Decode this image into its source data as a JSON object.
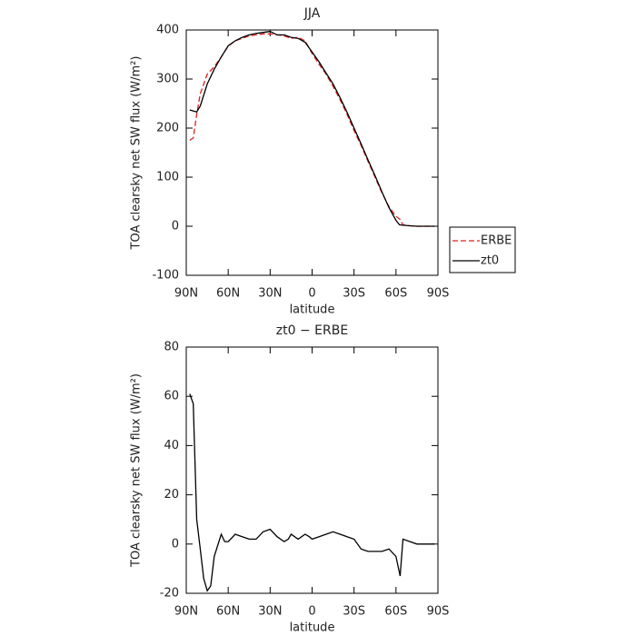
{
  "chart_data": [
    {
      "type": "line",
      "title": "JJA",
      "x_label": "latitude",
      "y_label": "TOA clearsky net SW flux (W/m²)",
      "x": [
        87.5,
        85,
        82.5,
        80,
        75,
        70,
        65,
        60,
        55,
        50,
        45,
        40,
        35,
        30,
        25,
        20,
        15,
        10,
        5,
        0,
        -5,
        -10,
        -15,
        -20,
        -25,
        -30,
        -35,
        -40,
        -45,
        -50,
        -55,
        -60,
        -62.5,
        -65,
        -70,
        -75,
        -80,
        -85,
        -87.5
      ],
      "series": [
        {
          "name": "ERBE",
          "color": "#e0201b",
          "dashed": true,
          "values": [
            175,
            180,
            228,
            270,
            310,
            325,
            345,
            367,
            378,
            383,
            388,
            390,
            392,
            392,
            390,
            388,
            383,
            385,
            378,
            352,
            330,
            310,
            285,
            258,
            228,
            195,
            165,
            132,
            100,
            68,
            40,
            20,
            15,
            3,
            1,
            0,
            0,
            0,
            0
          ]
        },
        {
          "name": "zt0",
          "color": "#000000",
          "dashed": false,
          "values": [
            237,
            235,
            233,
            245,
            290,
            320,
            345,
            368,
            378,
            385,
            390,
            393,
            395,
            397,
            390,
            390,
            385,
            383,
            375,
            355,
            335,
            312,
            290,
            262,
            232,
            200,
            168,
            135,
            103,
            70,
            38,
            12,
            3,
            2,
            1,
            0,
            0,
            0,
            0
          ]
        }
      ],
      "xlim": [
        90,
        -90
      ],
      "xticks": [
        {
          "value": 90,
          "label": "90N"
        },
        {
          "value": 60,
          "label": "60N"
        },
        {
          "value": 30,
          "label": "30N"
        },
        0,
        {
          "value": -30,
          "label": "30S"
        },
        {
          "value": -60,
          "label": "60S"
        },
        {
          "value": -90,
          "label": "90S"
        }
      ],
      "ylim": [
        -100,
        400
      ],
      "yticks": [
        -100,
        0,
        100,
        200,
        300,
        400
      ],
      "legend": "right"
    },
    {
      "type": "line",
      "title": "zt0 − ERBE",
      "x_label": "latitude",
      "y_label": "TOA clearsky net SW flux (W/m²)",
      "x": [
        87.5,
        85,
        82.5,
        80,
        77.5,
        75,
        72.5,
        70,
        65,
        62.5,
        60,
        55,
        50,
        45,
        40,
        35,
        30,
        25,
        20,
        17,
        15,
        10,
        5,
        2,
        0,
        -5,
        -10,
        -15,
        -20,
        -25,
        -30,
        -35,
        -40,
        -45,
        -50,
        -55,
        -60,
        -63,
        -65,
        -70,
        -75,
        -80,
        -87.5
      ],
      "series": [
        {
          "color": "#000000",
          "dashed": false,
          "values": [
            61,
            57,
            10,
            -2,
            -14,
            -19,
            -17,
            -5,
            4,
            1,
            1,
            4,
            3,
            2,
            2,
            5,
            6,
            3,
            1,
            2,
            4,
            2,
            4,
            3,
            2,
            3,
            4,
            5,
            4,
            3,
            2,
            -2,
            -3,
            -3,
            -3,
            -2,
            -5,
            -13,
            2,
            1,
            0,
            0,
            0
          ]
        }
      ],
      "xlim": [
        90,
        -90
      ],
      "xticks": [
        {
          "value": 90,
          "label": "90N"
        },
        {
          "value": 60,
          "label": "60N"
        },
        {
          "value": 30,
          "label": "30N"
        },
        0,
        {
          "value": -30,
          "label": "30S"
        },
        {
          "value": -60,
          "label": "60S"
        },
        {
          "value": -90,
          "label": "90S"
        }
      ],
      "ylim": [
        -20,
        80
      ],
      "yticks": [
        -20,
        0,
        20,
        40,
        60,
        80
      ],
      "legend": false
    }
  ]
}
